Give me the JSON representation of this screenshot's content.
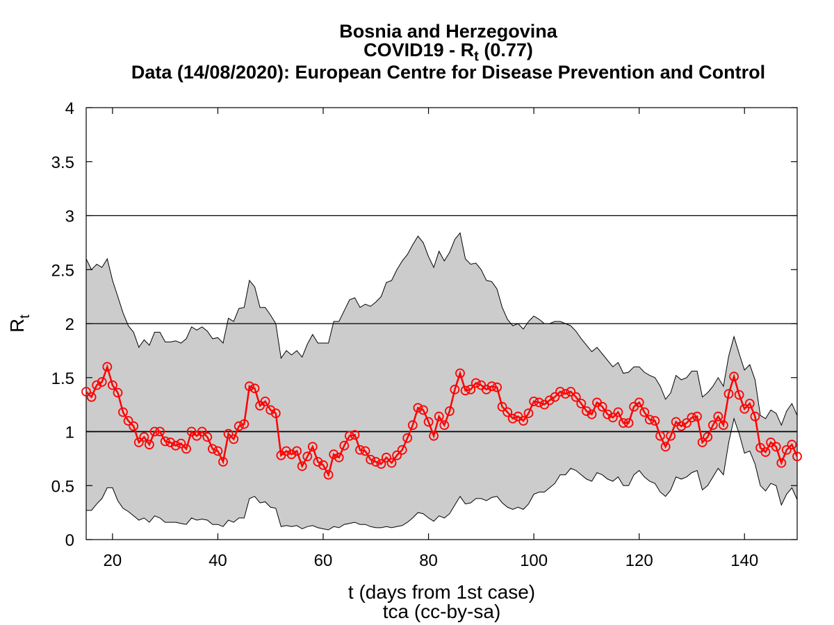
{
  "title": {
    "line1": "Bosnia and Herzegovina",
    "line2_prefix": "COVID19 - R",
    "line2_sub": "t",
    "line2_suffix": " (0.77)",
    "line3": "Data (14/08/2020): European Centre for Disease Prevention and Control"
  },
  "chart_data": {
    "type": "line",
    "title": "Bosnia and Herzegovina COVID19 - Rt (0.77)",
    "subtitle": "Data (14/08/2020): European Centre for Disease Prevention and Control",
    "xlabel": "t (days from 1st case)",
    "xlabel2": "tca (cc-by-sa)",
    "ylabel_main": "R",
    "ylabel_sub": "t",
    "xlim": [
      15,
      150
    ],
    "ylim": [
      0,
      4
    ],
    "xticks": [
      20,
      40,
      60,
      80,
      100,
      120,
      140
    ],
    "yticks": [
      0,
      0.5,
      1,
      1.5,
      2,
      2.5,
      3,
      3.5,
      4
    ],
    "ytick_labels": [
      "0",
      "0.5",
      "1",
      "1.5",
      "2",
      "2.5",
      "3",
      "3.5",
      "4"
    ],
    "reference_lines": [
      1,
      2,
      3
    ],
    "colors": {
      "series": "#ff0000",
      "band": "#cccccc",
      "band_edge": "#000000"
    },
    "x": [
      15,
      16,
      17,
      18,
      19,
      20,
      21,
      22,
      23,
      24,
      25,
      26,
      27,
      28,
      29,
      30,
      31,
      32,
      33,
      34,
      35,
      36,
      37,
      38,
      39,
      40,
      41,
      42,
      43,
      44,
      45,
      46,
      47,
      48,
      49,
      50,
      51,
      52,
      53,
      54,
      55,
      56,
      57,
      58,
      59,
      60,
      61,
      62,
      63,
      64,
      65,
      66,
      67,
      68,
      69,
      70,
      71,
      72,
      73,
      74,
      75,
      76,
      77,
      78,
      79,
      80,
      81,
      82,
      83,
      84,
      85,
      86,
      87,
      88,
      89,
      90,
      91,
      92,
      93,
      94,
      95,
      96,
      97,
      98,
      99,
      100,
      101,
      102,
      103,
      104,
      105,
      106,
      107,
      108,
      109,
      110,
      111,
      112,
      113,
      114,
      115,
      116,
      117,
      118,
      119,
      120,
      121,
      122,
      123,
      124,
      125,
      126,
      127,
      128,
      129,
      130,
      131,
      132,
      133,
      134,
      135,
      136,
      137,
      138,
      139,
      140,
      141,
      142,
      143,
      144,
      145,
      146,
      147,
      148,
      149,
      150
    ],
    "series": [
      {
        "name": "",
        "values": [
          1.37,
          1.32,
          1.43,
          1.46,
          1.6,
          1.43,
          1.36,
          1.18,
          1.1,
          1.05,
          0.9,
          0.95,
          0.88,
          1.0,
          1.0,
          0.91,
          0.9,
          0.87,
          0.89,
          0.84,
          1.0,
          0.96,
          1.0,
          0.95,
          0.84,
          0.82,
          0.72,
          0.98,
          0.93,
          1.05,
          1.07,
          1.42,
          1.4,
          1.24,
          1.28,
          1.2,
          1.17,
          0.78,
          0.82,
          0.79,
          0.82,
          0.68,
          0.77,
          0.86,
          0.72,
          0.69,
          0.6,
          0.79,
          0.76,
          0.87,
          0.96,
          0.97,
          0.83,
          0.82,
          0.74,
          0.72,
          0.7,
          0.76,
          0.71,
          0.78,
          0.83,
          0.94,
          1.06,
          1.22,
          1.2,
          1.09,
          0.96,
          1.14,
          1.06,
          1.19,
          1.39,
          1.54,
          1.38,
          1.39,
          1.45,
          1.43,
          1.39,
          1.42,
          1.41,
          1.23,
          1.18,
          1.12,
          1.14,
          1.1,
          1.17,
          1.28,
          1.27,
          1.25,
          1.29,
          1.32,
          1.37,
          1.35,
          1.37,
          1.32,
          1.26,
          1.19,
          1.16,
          1.27,
          1.23,
          1.16,
          1.13,
          1.18,
          1.08,
          1.08,
          1.23,
          1.27,
          1.18,
          1.11,
          1.1,
          0.96,
          0.86,
          0.96,
          1.09,
          1.05,
          1.08,
          1.13,
          1.14,
          0.9,
          0.95,
          1.06,
          1.14,
          1.06,
          1.35,
          1.51,
          1.34,
          1.21,
          1.26,
          1.14,
          0.85,
          0.81,
          0.9,
          0.86,
          0.71,
          0.83,
          0.88,
          0.77
        ]
      }
    ],
    "band_upper": [
      2.6,
      2.5,
      2.55,
      2.52,
      2.6,
      2.4,
      2.25,
      2.1,
      1.98,
      1.92,
      1.78,
      1.85,
      1.8,
      1.92,
      1.92,
      1.83,
      1.83,
      1.84,
      1.82,
      1.86,
      1.97,
      1.94,
      1.97,
      1.93,
      1.86,
      1.87,
      1.82,
      2.05,
      2.02,
      2.14,
      2.15,
      2.4,
      2.34,
      2.15,
      2.15,
      2.08,
      2.0,
      1.68,
      1.75,
      1.71,
      1.75,
      1.69,
      1.81,
      1.9,
      1.82,
      1.82,
      1.82,
      2.02,
      2.02,
      2.12,
      2.22,
      2.24,
      2.15,
      2.18,
      2.16,
      2.2,
      2.25,
      2.38,
      2.4,
      2.5,
      2.58,
      2.64,
      2.73,
      2.81,
      2.75,
      2.62,
      2.52,
      2.67,
      2.58,
      2.66,
      2.78,
      2.84,
      2.6,
      2.55,
      2.56,
      2.5,
      2.4,
      2.39,
      2.32,
      2.15,
      2.04,
      1.98,
      2.0,
      1.95,
      2.02,
      2.07,
      2.04,
      2.0,
      2.0,
      2.02,
      2.02,
      2.0,
      1.98,
      1.93,
      1.86,
      1.8,
      1.74,
      1.78,
      1.72,
      1.66,
      1.6,
      1.64,
      1.54,
      1.55,
      1.6,
      1.6,
      1.55,
      1.52,
      1.5,
      1.42,
      1.3,
      1.36,
      1.52,
      1.48,
      1.5,
      1.56,
      1.56,
      1.32,
      1.36,
      1.42,
      1.5,
      1.42,
      1.7,
      1.88,
      1.72,
      1.57,
      1.62,
      1.48,
      1.15,
      1.12,
      1.2,
      1.17,
      1.06,
      1.19,
      1.26,
      1.15
    ],
    "band_lower": [
      0.27,
      0.27,
      0.33,
      0.38,
      0.48,
      0.48,
      0.36,
      0.29,
      0.26,
      0.22,
      0.18,
      0.2,
      0.16,
      0.22,
      0.2,
      0.16,
      0.16,
      0.16,
      0.15,
      0.14,
      0.2,
      0.18,
      0.19,
      0.18,
      0.14,
      0.14,
      0.12,
      0.18,
      0.16,
      0.2,
      0.2,
      0.38,
      0.4,
      0.34,
      0.35,
      0.3,
      0.29,
      0.12,
      0.13,
      0.12,
      0.13,
      0.1,
      0.12,
      0.13,
      0.11,
      0.1,
      0.09,
      0.12,
      0.11,
      0.14,
      0.15,
      0.16,
      0.14,
      0.14,
      0.12,
      0.11,
      0.11,
      0.12,
      0.11,
      0.12,
      0.13,
      0.16,
      0.2,
      0.25,
      0.24,
      0.2,
      0.17,
      0.22,
      0.2,
      0.24,
      0.32,
      0.4,
      0.33,
      0.34,
      0.38,
      0.38,
      0.36,
      0.39,
      0.4,
      0.34,
      0.3,
      0.28,
      0.3,
      0.28,
      0.33,
      0.42,
      0.44,
      0.44,
      0.48,
      0.52,
      0.6,
      0.6,
      0.66,
      0.64,
      0.6,
      0.56,
      0.54,
      0.62,
      0.6,
      0.56,
      0.54,
      0.58,
      0.5,
      0.5,
      0.6,
      0.64,
      0.58,
      0.54,
      0.52,
      0.44,
      0.4,
      0.46,
      0.58,
      0.56,
      0.58,
      0.62,
      0.64,
      0.46,
      0.5,
      0.58,
      0.66,
      0.6,
      0.9,
      1.12,
      0.98,
      0.8,
      0.82,
      0.7,
      0.5,
      0.45,
      0.52,
      0.5,
      0.32,
      0.42,
      0.48,
      0.37
    ]
  }
}
